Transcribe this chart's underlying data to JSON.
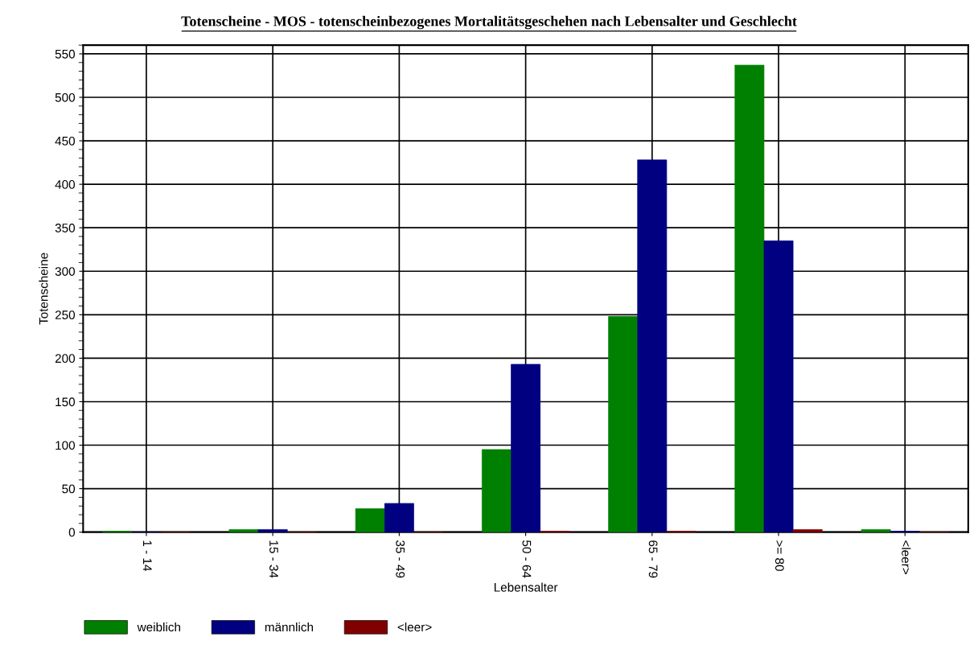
{
  "chart_data": {
    "type": "bar",
    "title": "Totenscheine - MOS - totenscheinbezogenes Mortalitätsgeschehen nach Lebensalter und Geschlecht",
    "xlabel": "Lebensalter",
    "ylabel": "Totenscheine",
    "categories": [
      "1 - 14",
      "15 - 34",
      "35 - 49",
      "50 - 64",
      "65 - 79",
      ">= 80",
      "<leer>"
    ],
    "series": [
      {
        "name": "weiblich",
        "color": "#008000",
        "values": [
          1,
          3,
          27,
          95,
          248,
          537,
          3
        ]
      },
      {
        "name": "männlich",
        "color": "#000080",
        "values": [
          0,
          3,
          33,
          193,
          428,
          335,
          1
        ]
      },
      {
        "name": "<leer>",
        "color": "#800000",
        "values": [
          0,
          0,
          0,
          1,
          1,
          3,
          0
        ]
      }
    ],
    "ylim": [
      0,
      560
    ],
    "yticks": [
      0,
      50,
      100,
      150,
      200,
      250,
      300,
      350,
      400,
      450,
      500,
      550
    ],
    "grid": true,
    "legend": "bottom left"
  }
}
